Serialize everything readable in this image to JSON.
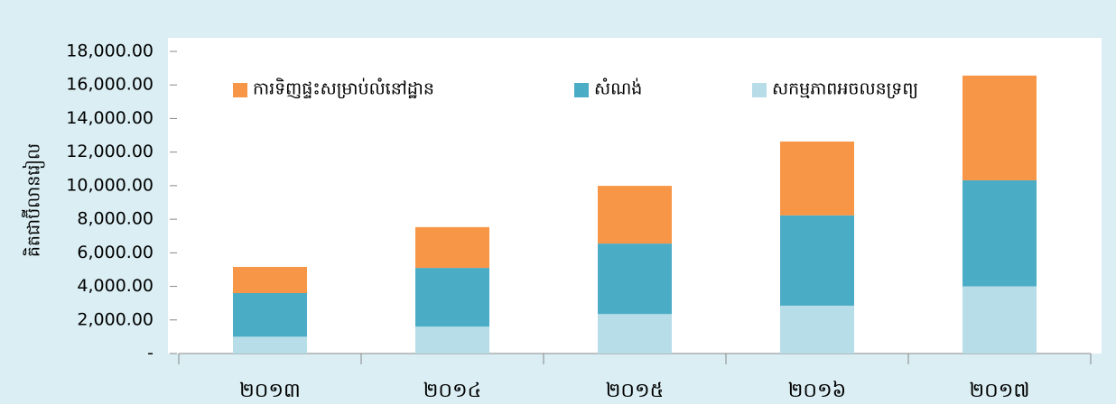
{
  "chart_data": {
    "type": "stacked_bar",
    "y_label": "គិតជាប៊ីលានរៀល",
    "categories": [
      "២០១៣",
      "២០១៤",
      "២០១៥",
      "២០១៦",
      "២០១៧"
    ],
    "series": [
      {
        "name": "សកម្មភាពអចលនទ្រព្យ",
        "color": "#b7dde8",
        "values": [
          1000,
          1600,
          2350,
          2850,
          4000
        ]
      },
      {
        "name": "សំណង់",
        "color": "#4bacc6",
        "values": [
          2600,
          3500,
          4200,
          5380,
          6320
        ]
      },
      {
        "name": "ការទិញផ្ទះសម្រាប់លំនៅដ្ឋាន",
        "color": "#f79646",
        "values": [
          1560,
          2430,
          3440,
          4400,
          6240
        ]
      }
    ],
    "ylim": [
      0,
      18000
    ],
    "yticks": [
      {
        "value": 0,
        "label": "-"
      },
      {
        "value": 2000,
        "label": "2,000.00"
      },
      {
        "value": 4000,
        "label": "4,000.00"
      },
      {
        "value": 6000,
        "label": "6,000.00"
      },
      {
        "value": 8000,
        "label": "8,000.00"
      },
      {
        "value": 10000,
        "label": "10,000.00"
      },
      {
        "value": 12000,
        "label": "12,000.00"
      },
      {
        "value": 14000,
        "label": "14,000.00"
      },
      {
        "value": 16000,
        "label": "16,000.00"
      },
      {
        "value": 18000,
        "label": "18,000.00"
      }
    ],
    "legend": "top"
  }
}
